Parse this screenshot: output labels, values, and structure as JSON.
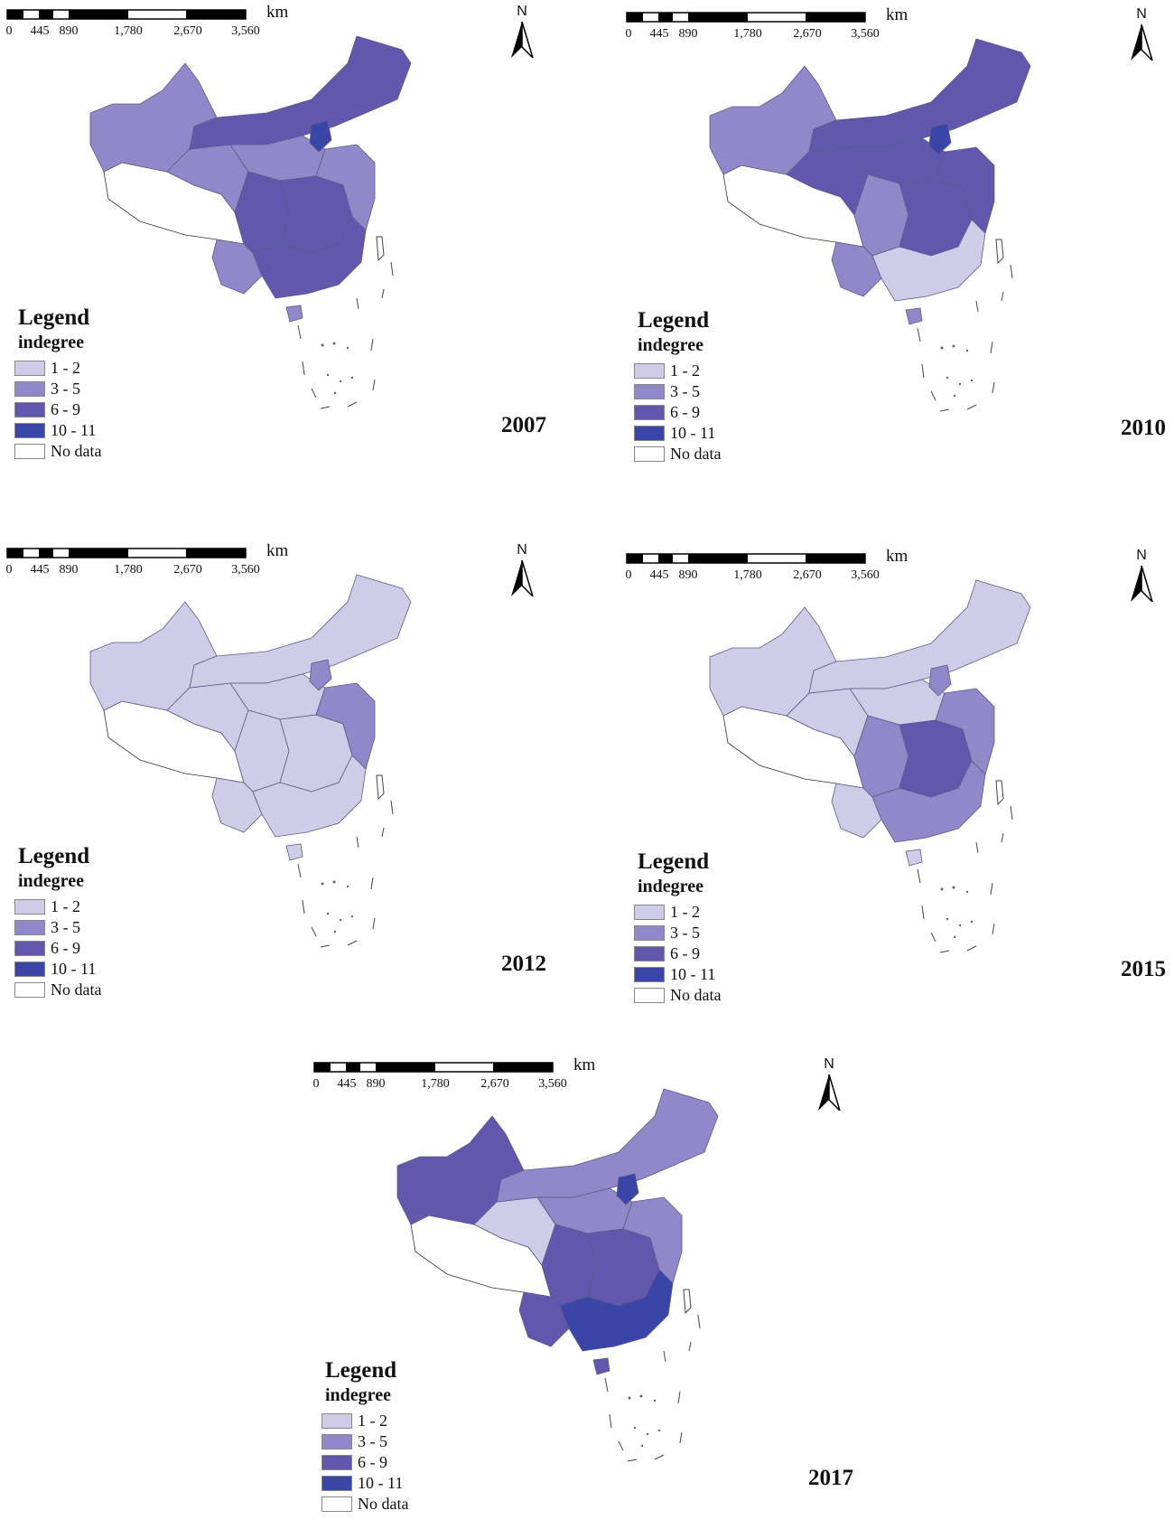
{
  "scale": {
    "unit": "km",
    "ticks": [
      "0",
      "445",
      "890",
      "1,780",
      "2,670",
      "3,560"
    ]
  },
  "north_label": "N",
  "legend": {
    "title": "Legend",
    "subtitle": "indegree",
    "items": [
      {
        "label": "1 - 2",
        "color": "#cfcce8"
      },
      {
        "label": "3 - 5",
        "color": "#9088c8"
      },
      {
        "label": "6 - 9",
        "color": "#6158ae"
      },
      {
        "label": "10 - 11",
        "color": "#3a45a8"
      },
      {
        "label": "No data",
        "color": "#ffffff"
      }
    ]
  },
  "panels": [
    {
      "year": "2007"
    },
    {
      "year": "2010"
    },
    {
      "year": "2012"
    },
    {
      "year": "2015"
    },
    {
      "year": "2017"
    }
  ]
}
